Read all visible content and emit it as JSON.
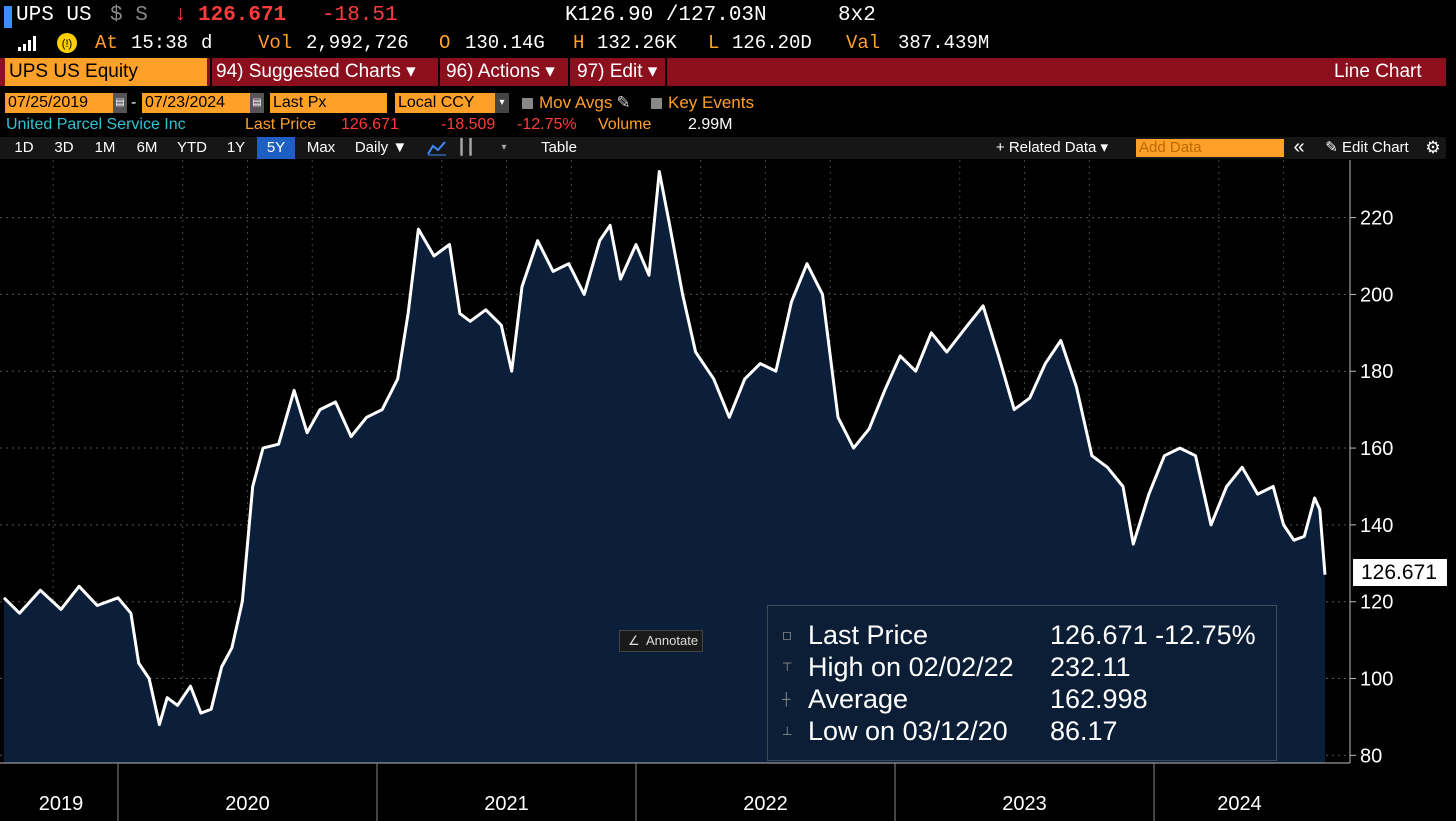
{
  "header": {
    "ticker": "UPS US",
    "currency_flags": "$ S",
    "down_arrow": "↓",
    "last": "126.671",
    "change": "-18.51",
    "bid_ask": "K126.90 /127.03N",
    "size": "8x2",
    "at_label": "At",
    "time": "15:38",
    "time_suffix": "d",
    "vol_label": "Vol",
    "volume": "2,992,726",
    "open_label": "O",
    "open": "130.14G",
    "high_label": "H",
    "high": "132.26K",
    "low_label": "L",
    "low": "126.20D",
    "val_label": "Val",
    "value": "387.439M"
  },
  "menubar": {
    "security": "UPS US Equity",
    "suggested": "94) Suggested Charts ▾",
    "actions": "96) Actions ▾",
    "edit": "97) Edit ▾",
    "chart_type": "Line Chart"
  },
  "controls": {
    "start_date": "07/25/2019",
    "dash": "-",
    "end_date": "07/23/2024",
    "field": "Last Px",
    "currency": "Local CCY",
    "mov_avgs": "Mov Avgs",
    "key_events": "Key Events"
  },
  "security_line": {
    "name": "United Parcel Service Inc",
    "last_price_label": "Last Price",
    "last_price": "126.671",
    "change": "-18.509",
    "pct": "-12.75%",
    "volume_label": "Volume",
    "volume": "2.99M"
  },
  "toolbar": {
    "ranges": [
      "1D",
      "3D",
      "1M",
      "6M",
      "YTD",
      "1Y",
      "5Y",
      "Max"
    ],
    "active_range": "5Y",
    "period": "Daily ▼",
    "table": "Table",
    "related": "+ Related Data ▾",
    "add_data_placeholder": "Add Data",
    "collapse": "«",
    "edit_chart": "Edit Chart",
    "settings_icon": "gear-icon"
  },
  "legend": {
    "last_label": "Last Price",
    "last_value": "126.671 -12.75%",
    "high_label": "High on 02/02/22",
    "high_value": "232.11",
    "avg_label": "Average",
    "avg_value": "162.998",
    "low_label": "Low on 03/12/20",
    "low_value": "86.17"
  },
  "annotate_label": "Annotate",
  "colors": {
    "accent_orange": "#ffa028",
    "menu_red": "#8c0f1e",
    "area_fill": "#0b1e3a",
    "line": "#ffffff",
    "down_red": "#ff3c3c"
  },
  "chart_data": {
    "type": "area",
    "ylim": [
      78,
      235
    ],
    "y_ticks": [
      80,
      100,
      120,
      140,
      160,
      180,
      200,
      220
    ],
    "x_labels": [
      "2019",
      "2020",
      "2021",
      "2022",
      "2023",
      "2024"
    ],
    "last_value_tag": "126.671",
    "series": [
      {
        "values": [
          [
            2019.56,
            121
          ],
          [
            2019.62,
            117
          ],
          [
            2019.7,
            123
          ],
          [
            2019.78,
            118
          ],
          [
            2019.85,
            124
          ],
          [
            2019.92,
            119
          ],
          [
            2020.0,
            121
          ],
          [
            2020.05,
            117
          ],
          [
            2020.08,
            104
          ],
          [
            2020.12,
            100
          ],
          [
            2020.16,
            88
          ],
          [
            2020.19,
            95
          ],
          [
            2020.23,
            93
          ],
          [
            2020.28,
            98
          ],
          [
            2020.32,
            91
          ],
          [
            2020.36,
            92
          ],
          [
            2020.4,
            103
          ],
          [
            2020.44,
            108
          ],
          [
            2020.48,
            120
          ],
          [
            2020.52,
            150
          ],
          [
            2020.56,
            160
          ],
          [
            2020.62,
            161
          ],
          [
            2020.68,
            175
          ],
          [
            2020.73,
            164
          ],
          [
            2020.78,
            170
          ],
          [
            2020.84,
            172
          ],
          [
            2020.9,
            163
          ],
          [
            2020.96,
            168
          ],
          [
            2021.02,
            170
          ],
          [
            2021.08,
            178
          ],
          [
            2021.12,
            195
          ],
          [
            2021.16,
            217
          ],
          [
            2021.22,
            210
          ],
          [
            2021.28,
            213
          ],
          [
            2021.32,
            195
          ],
          [
            2021.36,
            193
          ],
          [
            2021.42,
            196
          ],
          [
            2021.48,
            192
          ],
          [
            2021.52,
            180
          ],
          [
            2021.56,
            202
          ],
          [
            2021.62,
            214
          ],
          [
            2021.68,
            206
          ],
          [
            2021.74,
            208
          ],
          [
            2021.8,
            200
          ],
          [
            2021.86,
            214
          ],
          [
            2021.9,
            218
          ],
          [
            2021.94,
            204
          ],
          [
            2022.0,
            213
          ],
          [
            2022.05,
            205
          ],
          [
            2022.09,
            232
          ],
          [
            2022.13,
            218
          ],
          [
            2022.18,
            200
          ],
          [
            2022.23,
            185
          ],
          [
            2022.3,
            178
          ],
          [
            2022.36,
            168
          ],
          [
            2022.42,
            178
          ],
          [
            2022.48,
            182
          ],
          [
            2022.54,
            180
          ],
          [
            2022.6,
            198
          ],
          [
            2022.66,
            208
          ],
          [
            2022.72,
            200
          ],
          [
            2022.78,
            168
          ],
          [
            2022.84,
            160
          ],
          [
            2022.9,
            165
          ],
          [
            2022.96,
            175
          ],
          [
            2023.02,
            184
          ],
          [
            2023.08,
            180
          ],
          [
            2023.14,
            190
          ],
          [
            2023.2,
            185
          ],
          [
            2023.28,
            192
          ],
          [
            2023.34,
            197
          ],
          [
            2023.4,
            184
          ],
          [
            2023.46,
            170
          ],
          [
            2023.52,
            173
          ],
          [
            2023.58,
            182
          ],
          [
            2023.64,
            188
          ],
          [
            2023.7,
            176
          ],
          [
            2023.76,
            158
          ],
          [
            2023.82,
            155
          ],
          [
            2023.88,
            150
          ],
          [
            2023.92,
            135
          ],
          [
            2023.98,
            148
          ],
          [
            2024.04,
            158
          ],
          [
            2024.1,
            160
          ],
          [
            2024.16,
            158
          ],
          [
            2024.22,
            140
          ],
          [
            2024.28,
            150
          ],
          [
            2024.34,
            155
          ],
          [
            2024.4,
            148
          ],
          [
            2024.46,
            150
          ],
          [
            2024.5,
            140
          ],
          [
            2024.54,
            136
          ],
          [
            2024.58,
            137
          ],
          [
            2024.62,
            147
          ],
          [
            2024.64,
            144
          ],
          [
            2024.66,
            127
          ]
        ]
      }
    ]
  }
}
